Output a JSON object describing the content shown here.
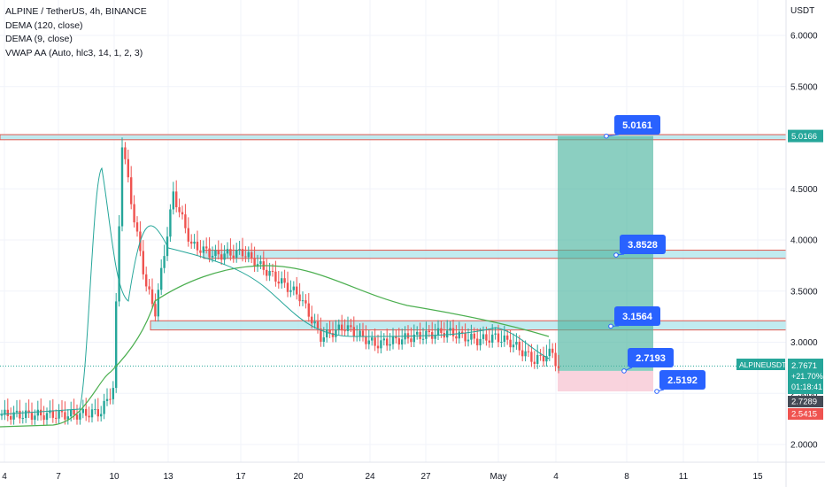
{
  "legend": {
    "symbol_line": "ALPINE / TetherUS, 4h, BINANCE",
    "indicators": [
      "DEMA (120, close)",
      "DEMA (9, close)",
      "VWAP AA (Auto, hlc3, 14, 1, 2, 3)"
    ]
  },
  "colors": {
    "bull": "#26a69a",
    "bear": "#ef5350",
    "dema120": "#4caf50",
    "dema9": "#26a69a",
    "vwap": "#4caf50",
    "zone_fill": "#a7e3ea",
    "zone_border": "#e0584f",
    "target_fill": "#4db6a0",
    "stop_fill": "#f8c8d4",
    "label_blue": "#2962ff",
    "price_label_bg": "#26a69a",
    "last_price_bg": "#444a55",
    "bottom_price_bg": "#ef5350"
  },
  "chart_data": {
    "type": "candlestick",
    "currency_label": "USDT",
    "y_axis": {
      "ticks": [
        "6.0000",
        "5.5000",
        "5.0000",
        "4.5000",
        "4.0000",
        "3.5000",
        "3.0000",
        "2.5000",
        "2.0000"
      ],
      "range": [
        1.85,
        6.3
      ]
    },
    "x_axis": {
      "ticks": [
        "4",
        "7",
        "10",
        "13",
        "17",
        "20",
        "24",
        "27",
        "May",
        "4",
        "8",
        "11",
        "15"
      ]
    },
    "horizontal_levels": [
      "5.0161",
      "3.8528",
      "3.1564",
      "2.7193",
      "2.5192"
    ],
    "axis_price_labels": {
      "top_level": "5.0166",
      "symbol": "ALPINEUSDT",
      "last_price": "2.7671",
      "change": "+21.70%",
      "countdown": "01:18:41",
      "price_2": "2.7289",
      "price_3": "2.5415"
    },
    "zones": [
      {
        "low": 4.98,
        "high": 5.03
      },
      {
        "low": 3.82,
        "high": 3.9
      },
      {
        "low": 3.12,
        "high": 3.21
      }
    ],
    "position": {
      "entry": 2.7193,
      "target": 5.0161,
      "stop": 2.5192
    }
  }
}
